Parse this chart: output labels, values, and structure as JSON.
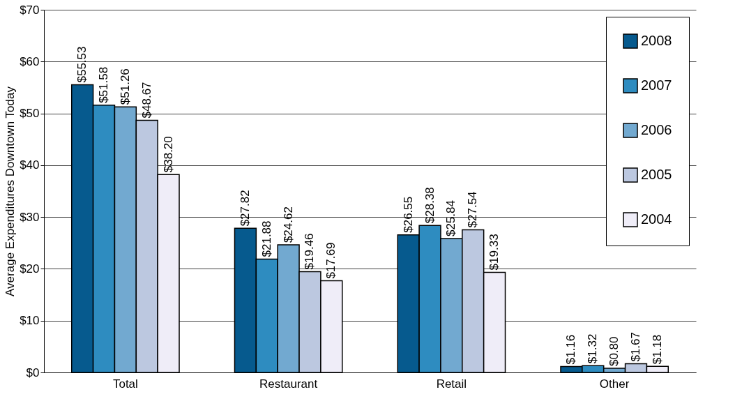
{
  "chart_data": {
    "type": "bar",
    "ylabel": "Average Expenditures Downtown Today",
    "categories": [
      "Total",
      "Restaurant",
      "Retail",
      "Other"
    ],
    "series": [
      {
        "name": "2008",
        "color": "#065a8e",
        "values": [
          55.53,
          27.82,
          26.55,
          1.16
        ],
        "value_labels": [
          "$55.53",
          "$27.82",
          "$26.55",
          "$1.16"
        ]
      },
      {
        "name": "2007",
        "color": "#2e8cc0",
        "values": [
          51.58,
          21.88,
          28.38,
          1.32
        ],
        "value_labels": [
          "$51.58",
          "$21.88",
          "$28.38",
          "$1.32"
        ]
      },
      {
        "name": "2006",
        "color": "#72a9d0",
        "values": [
          51.26,
          24.62,
          25.84,
          0.8
        ],
        "value_labels": [
          "$51.26",
          "$24.62",
          "$25.84",
          "$0.80"
        ]
      },
      {
        "name": "2005",
        "color": "#bcc8e0",
        "values": [
          48.67,
          19.46,
          27.54,
          1.67
        ],
        "value_labels": [
          "$48.67",
          "$19.46",
          "$27.54",
          "$1.67"
        ]
      },
      {
        "name": "2004",
        "color": "#efedf8",
        "values": [
          38.2,
          17.69,
          19.33,
          1.18
        ],
        "value_labels": [
          "$38.20",
          "$17.69",
          "$19.33",
          "$1.18"
        ]
      }
    ],
    "ylim": [
      0,
      70
    ],
    "yticks": [
      {
        "value": 0,
        "label": "$0"
      },
      {
        "value": 10,
        "label": "$10"
      },
      {
        "value": 20,
        "label": "$20"
      },
      {
        "value": 30,
        "label": "$30"
      },
      {
        "value": 40,
        "label": "$40"
      },
      {
        "value": 50,
        "label": "$50"
      },
      {
        "value": 60,
        "label": "$60"
      },
      {
        "value": 70,
        "label": "$70"
      }
    ],
    "grid": "y",
    "legend": "top right"
  }
}
